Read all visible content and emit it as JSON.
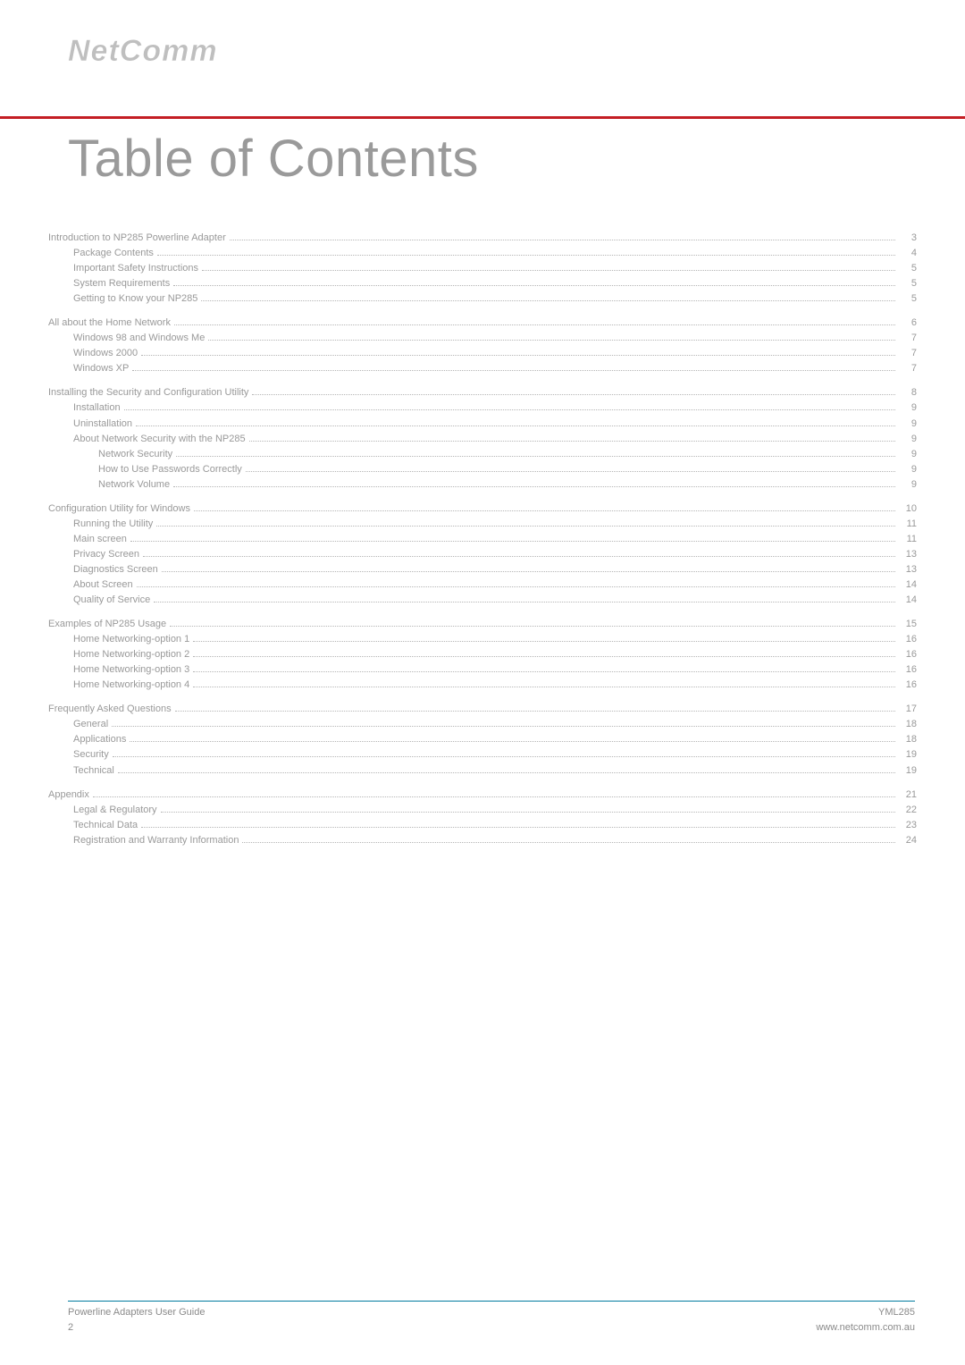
{
  "logo_text": "NetComm",
  "accent_color": "#c41e24",
  "text_color": "#999999",
  "footer_rule_color": "#007a9e",
  "page_title": "Table of Contents",
  "footer": {
    "left_line1": "Powerline Adapters User Guide",
    "left_line2": "2",
    "right_line1": "YML285",
    "right_line2": "www.netcomm.com.au"
  },
  "toc": [
    {
      "heading": {
        "label": "Introduction to NP285 Powerline Adapter",
        "page": "3"
      },
      "items": [
        {
          "label": "Package Contents",
          "page": "4",
          "level": 1
        },
        {
          "label": "Important Safety Instructions",
          "page": "5",
          "level": 1
        },
        {
          "label": "System Requirements",
          "page": "5",
          "level": 1
        },
        {
          "label": "Getting to Know your NP285",
          "page": "5",
          "level": 1
        }
      ]
    },
    {
      "heading": {
        "label": "All about the Home Network",
        "page": "6"
      },
      "items": [
        {
          "label": "Windows 98 and Windows Me",
          "page": "7",
          "level": 1
        },
        {
          "label": "Windows 2000",
          "page": "7",
          "level": 1
        },
        {
          "label": "Windows XP",
          "page": "7",
          "level": 1
        }
      ]
    },
    {
      "heading": {
        "label": "Installing the Security and Configuration Utility",
        "page": "8"
      },
      "items": [
        {
          "label": "Installation",
          "page": "9",
          "level": 1
        },
        {
          "label": "Uninstallation",
          "page": "9",
          "level": 1
        },
        {
          "label": "About Network Security with the NP285",
          "page": "9",
          "level": 1
        },
        {
          "label": "Network Security",
          "page": "9",
          "level": 2
        },
        {
          "label": "How to Use Passwords Correctly",
          "page": "9",
          "level": 2
        },
        {
          "label": "Network Volume",
          "page": "9",
          "level": 2
        }
      ]
    },
    {
      "heading": {
        "label": "Configuration Utility for Windows",
        "page": "10"
      },
      "items": [
        {
          "label": "Running the Utility",
          "page": "11",
          "level": 1
        },
        {
          "label": "Main screen",
          "page": "11",
          "level": 1
        },
        {
          "label": "Privacy Screen",
          "page": "13",
          "level": 1
        },
        {
          "label": "Diagnostics Screen",
          "page": "13",
          "level": 1
        },
        {
          "label": "About Screen",
          "page": "14",
          "level": 1
        },
        {
          "label": "Quality of Service",
          "page": "14",
          "level": 1
        }
      ]
    },
    {
      "heading": {
        "label": "Examples of NP285 Usage",
        "page": "15"
      },
      "items": [
        {
          "label": "Home Networking-option 1",
          "page": "16",
          "level": 1
        },
        {
          "label": "Home Networking-option 2",
          "page": "16",
          "level": 1
        },
        {
          "label": "Home Networking-option 3",
          "page": "16",
          "level": 1
        },
        {
          "label": "Home Networking-option 4",
          "page": "16",
          "level": 1
        }
      ]
    },
    {
      "heading": {
        "label": "Frequently Asked Questions ",
        "page": "17"
      },
      "items": [
        {
          "label": "General",
          "page": "18",
          "level": 1
        },
        {
          "label": "Applications",
          "page": "18",
          "level": 1
        },
        {
          "label": "Security",
          "page": "19",
          "level": 1
        },
        {
          "label": "Technical",
          "page": "19",
          "level": 1
        }
      ]
    },
    {
      "heading": {
        "label": "Appendix ",
        "page": "21"
      },
      "items": [
        {
          "label": "Legal & Regulatory",
          "page": "22",
          "level": 1
        },
        {
          "label": "Technical Data",
          "page": "23",
          "level": 1
        },
        {
          "label": "Registration and Warranty Information",
          "page": "24",
          "level": 1
        }
      ]
    }
  ]
}
